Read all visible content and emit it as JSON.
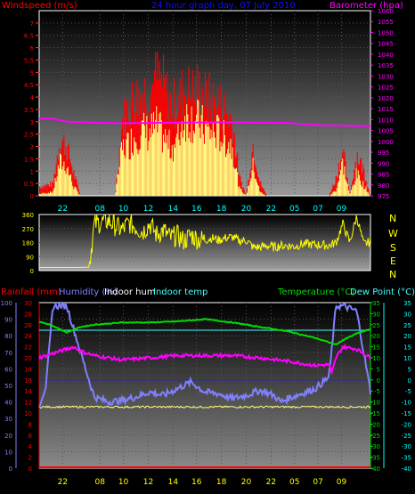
{
  "colors": {
    "windspeed": "#ff0000",
    "gust": "#ffff80",
    "barometer": "#ff00ff",
    "direction": "#ffff00",
    "rainfall": "#ff0000",
    "humidity": "#8080ff",
    "indoor_hum": "#ffff80",
    "indoor_temp": "#40ffff",
    "temperature": "#00dd00",
    "dew_point": "#ff00ff",
    "title": "#1010ff",
    "axis_cyan": "#00ffff",
    "axis_hour": "#ffff00"
  },
  "chart_data": [
    {
      "type": "bar",
      "title": "24 hour graph day, 07 July 2010",
      "ylabel": "Windspeed (m/s)",
      "y2label": "Barometer (hpa)",
      "ylim": [
        0,
        7.5
      ],
      "y2lim": [
        975,
        1060
      ],
      "yticks": [
        "0",
        "0.5",
        "1",
        "1.5",
        "2",
        "2.5",
        "3",
        "3.5",
        "4",
        "4.5",
        "5",
        "5.5",
        "6",
        "6.5",
        "7"
      ],
      "y2ticks": [
        "975",
        "980",
        "985",
        "990",
        "995",
        "1000",
        "1005",
        "1010",
        "1015",
        "1020",
        "1025",
        "1030",
        "1035",
        "1040",
        "1045",
        "1050",
        "1055",
        "1060"
      ],
      "xticks": [
        "22",
        "08",
        "10",
        "12",
        "14",
        "16",
        "18",
        "20",
        "22",
        "05",
        "07",
        "09"
      ],
      "series": [
        {
          "name": "Windspeed",
          "x": [
            0,
            1,
            1.5,
            2,
            2.5,
            3,
            3.5,
            4,
            4.5,
            5,
            5.5,
            6,
            6.5,
            7,
            7.5,
            8,
            8.5,
            9,
            9.5,
            10,
            10.5,
            11,
            11.5,
            12,
            12.5,
            13,
            13.5,
            14,
            14.5,
            15,
            15.5,
            16,
            16.5,
            17,
            17.5,
            18,
            18.5,
            19,
            19.5,
            20,
            20.5,
            21,
            21.5,
            22,
            22.5,
            23,
            23.5,
            24
          ],
          "values": [
            0.1,
            0.2,
            1.8,
            1.6,
            0.5,
            0,
            0,
            0,
            0,
            0,
            0,
            2.5,
            2.8,
            3.3,
            3.5,
            3.4,
            3.7,
            3.2,
            2.6,
            2.9,
            4.3,
            4.2,
            4.0,
            3.6,
            3.4,
            3.4,
            3.0,
            2.7,
            0.4,
            0,
            1.6,
            0.2,
            0,
            0,
            0,
            0,
            0,
            0,
            0,
            0,
            0,
            0,
            0.3,
            1.8,
            0,
            1.2,
            0.6,
            0
          ]
        },
        {
          "name": "Gust",
          "x": [
            0,
            1,
            1.5,
            2,
            2.5,
            3,
            3.5,
            4,
            4.5,
            5,
            5.5,
            6,
            6.5,
            7,
            7.5,
            8,
            8.5,
            9,
            9.5,
            10,
            10.5,
            11,
            11.5,
            12,
            12.5,
            13,
            13.5,
            14,
            14.5,
            15,
            15.5,
            16,
            16.5,
            17,
            17.5,
            18,
            18.5,
            19,
            19.5,
            20,
            20.5,
            21,
            21.5,
            22,
            22.5,
            23,
            23.5,
            24
          ],
          "values": [
            0.5,
            0.6,
            3.0,
            2.6,
            1.2,
            0,
            0,
            0,
            0,
            0,
            0,
            3.8,
            4.8,
            5.1,
            5.5,
            5.4,
            6.2,
            5.8,
            4.9,
            4.8,
            5.6,
            5.4,
            5.6,
            5.2,
            5.0,
            4.9,
            4.5,
            3.9,
            1.0,
            0,
            2.7,
            0.7,
            0,
            0,
            0,
            0,
            0,
            0,
            0,
            0,
            0,
            0,
            0.9,
            2.4,
            0,
            2.2,
            1.4,
            0
          ]
        },
        {
          "name": "Barometer",
          "x": [
            0,
            1,
            2,
            4,
            6,
            8,
            10,
            12,
            14,
            16,
            18,
            20,
            22,
            24
          ],
          "values": [
            1010.5,
            1010.4,
            1009,
            1008.6,
            1008.3,
            1008.5,
            1008.6,
            1008.7,
            1008.7,
            1008.6,
            1008.5,
            1007.5,
            1007.2,
            1007
          ]
        }
      ]
    },
    {
      "type": "line",
      "ylabel_right": [
        "N",
        "W",
        "S",
        "E",
        "N"
      ],
      "ylim": [
        0,
        360
      ],
      "yticks": [
        "0",
        "90",
        "180",
        "270",
        "360"
      ],
      "series": [
        {
          "name": "Wind direction",
          "x": [
            0,
            1,
            2,
            3,
            3.6,
            4,
            4.5,
            5,
            5.5,
            6,
            6.5,
            7,
            7.5,
            8,
            8.5,
            9,
            9.5,
            10,
            10.5,
            11,
            11.5,
            12,
            12.5,
            13,
            13.5,
            14,
            14.5,
            15,
            15.5,
            16,
            16.5,
            17,
            17.5,
            18,
            18.5,
            19,
            19.5,
            20,
            20.5,
            21,
            21.5,
            22,
            22.5,
            23,
            23.5,
            24
          ],
          "values": [
            20,
            20,
            20,
            20,
            22,
            300,
            310,
            320,
            290,
            260,
            305,
            280,
            250,
            300,
            230,
            260,
            210,
            225,
            190,
            230,
            200,
            195,
            210,
            195,
            210,
            215,
            190,
            195,
            150,
            150,
            160,
            150,
            160,
            160,
            155,
            170,
            170,
            165,
            165,
            160,
            180,
            300,
            180,
            350,
            170,
            185
          ]
        }
      ]
    },
    {
      "type": "line",
      "ylabel_left": [
        "Rainfall (mm)",
        "Humidity (%)"
      ],
      "legend": [
        "Indoor hum",
        "Indoor temp"
      ],
      "ylabel_right": [
        "Temperature (°C)",
        "Dew Point (°C)"
      ],
      "rain_ticks": [
        "0",
        "2",
        "4",
        "6",
        "8",
        "10",
        "12",
        "14",
        "16",
        "18",
        "20",
        "22",
        "24",
        "26",
        "28",
        "30"
      ],
      "humidity_ticks": [
        "0",
        "10",
        "20",
        "30",
        "40",
        "50",
        "60",
        "70",
        "80",
        "90",
        "100"
      ],
      "temp_ticks": [
        "35",
        "30",
        "25",
        "20",
        "15",
        "10",
        "5",
        "0",
        "-5",
        "-10",
        "-15",
        "-20",
        "-25",
        "-30",
        "-35",
        "-40"
      ],
      "xticks": [
        "22",
        "08",
        "10",
        "12",
        "14",
        "16",
        "18",
        "20",
        "22",
        "05",
        "07",
        "09"
      ],
      "series": [
        {
          "name": "Humidity",
          "x": [
            0,
            0.5,
            1,
            1.5,
            2,
            3,
            3.8,
            4,
            5,
            6,
            7,
            8,
            9,
            10,
            11,
            12,
            13,
            14,
            15,
            16,
            17,
            17.5,
            18,
            19,
            20,
            21,
            21.5,
            22,
            23,
            24
          ],
          "values": [
            38,
            50,
            98,
            98,
            98,
            70,
            48,
            43,
            40,
            41,
            43,
            46,
            44,
            48,
            52,
            46,
            45,
            42,
            44,
            47,
            44,
            40,
            42,
            45,
            48,
            55,
            98,
            98,
            95,
            46
          ]
        },
        {
          "name": "Indoor hum",
          "x": [
            0,
            24
          ],
          "values": [
            37,
            37
          ]
        },
        {
          "name": "Indoor temp",
          "x": [
            0,
            24
          ],
          "values": [
            22.5,
            22.5
          ]
        },
        {
          "name": "Temperature",
          "x": [
            0,
            1,
            2,
            3,
            4,
            6,
            8,
            10,
            12,
            14,
            16,
            18,
            20,
            21,
            21.5,
            22,
            23,
            24
          ],
          "values": [
            26.5,
            24.5,
            21.5,
            24,
            25,
            26,
            26,
            26.5,
            27.5,
            26,
            24,
            22,
            19,
            17,
            16,
            18,
            21,
            23
          ]
        },
        {
          "name": "Dew Point",
          "x": [
            0,
            1,
            2,
            2.5,
            3,
            4,
            6,
            8,
            10,
            12,
            14,
            16,
            18,
            20,
            21,
            21.2,
            21.5,
            22,
            23,
            24
          ],
          "values": [
            10,
            12,
            14,
            15,
            13,
            11,
            9,
            10,
            11,
            11,
            11,
            10,
            8.5,
            6.5,
            7,
            3,
            10,
            15,
            14,
            10
          ]
        }
      ]
    }
  ]
}
